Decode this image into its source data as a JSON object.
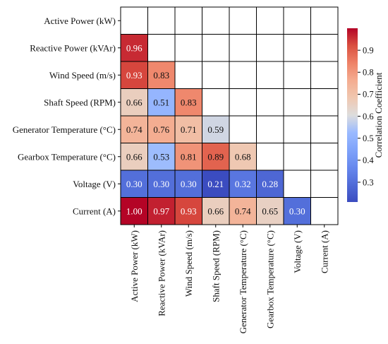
{
  "chart_data": {
    "type": "heatmap",
    "variables": [
      "Active Power (kW)",
      "Reactive Power (kVAr)",
      "Wind Speed (m/s)",
      "Shaft Speed (RPM)",
      "Generator Temperature (°C)",
      "Gearbox Temperature (°C)",
      "Voltage (V)",
      "Current (A)"
    ],
    "values": [
      [
        null,
        null,
        null,
        null,
        null,
        null,
        null,
        null
      ],
      [
        0.96,
        null,
        null,
        null,
        null,
        null,
        null,
        null
      ],
      [
        0.93,
        0.83,
        null,
        null,
        null,
        null,
        null,
        null
      ],
      [
        0.66,
        0.51,
        0.83,
        null,
        null,
        null,
        null,
        null
      ],
      [
        0.74,
        0.76,
        0.71,
        0.59,
        null,
        null,
        null,
        null
      ],
      [
        0.66,
        0.53,
        0.81,
        0.89,
        0.68,
        null,
        null,
        null
      ],
      [
        0.3,
        0.3,
        0.3,
        0.21,
        0.32,
        0.28,
        null,
        null
      ],
      [
        1.0,
        0.97,
        0.93,
        0.66,
        0.74,
        0.65,
        0.3,
        null
      ]
    ],
    "labels": [
      [
        "",
        "",
        "",
        "",
        "",
        "",
        "",
        ""
      ],
      [
        "0.96",
        "",
        "",
        "",
        "",
        "",
        "",
        ""
      ],
      [
        "0.93",
        "0.83",
        "",
        "",
        "",
        "",
        "",
        ""
      ],
      [
        "0.66",
        "0.51",
        "0.83",
        "",
        "",
        "",
        "",
        ""
      ],
      [
        "0.74",
        "0.76",
        "0.71",
        "0.59",
        "",
        "",
        "",
        ""
      ],
      [
        "0.66",
        "0.53",
        "0.81",
        "0.89",
        "0.68",
        "",
        "",
        ""
      ],
      [
        "0.30",
        "0.30",
        "0.30",
        "0.21",
        "0.32",
        "0.28",
        "",
        ""
      ],
      [
        "1.00",
        "0.97",
        "0.93",
        "0.66",
        "0.74",
        "0.65",
        "0.30",
        ""
      ]
    ],
    "colormap": "coolwarm",
    "vmin": 0.21,
    "vmax": 1.0,
    "colorbar": {
      "label": "Correlation Coefficient",
      "ticks": [
        0.3,
        0.4,
        0.5,
        0.6,
        0.7,
        0.8,
        0.9
      ],
      "tick_labels": [
        "0.3",
        "0.4",
        "0.5",
        "0.6",
        "0.7",
        "0.8",
        "0.9"
      ]
    }
  }
}
